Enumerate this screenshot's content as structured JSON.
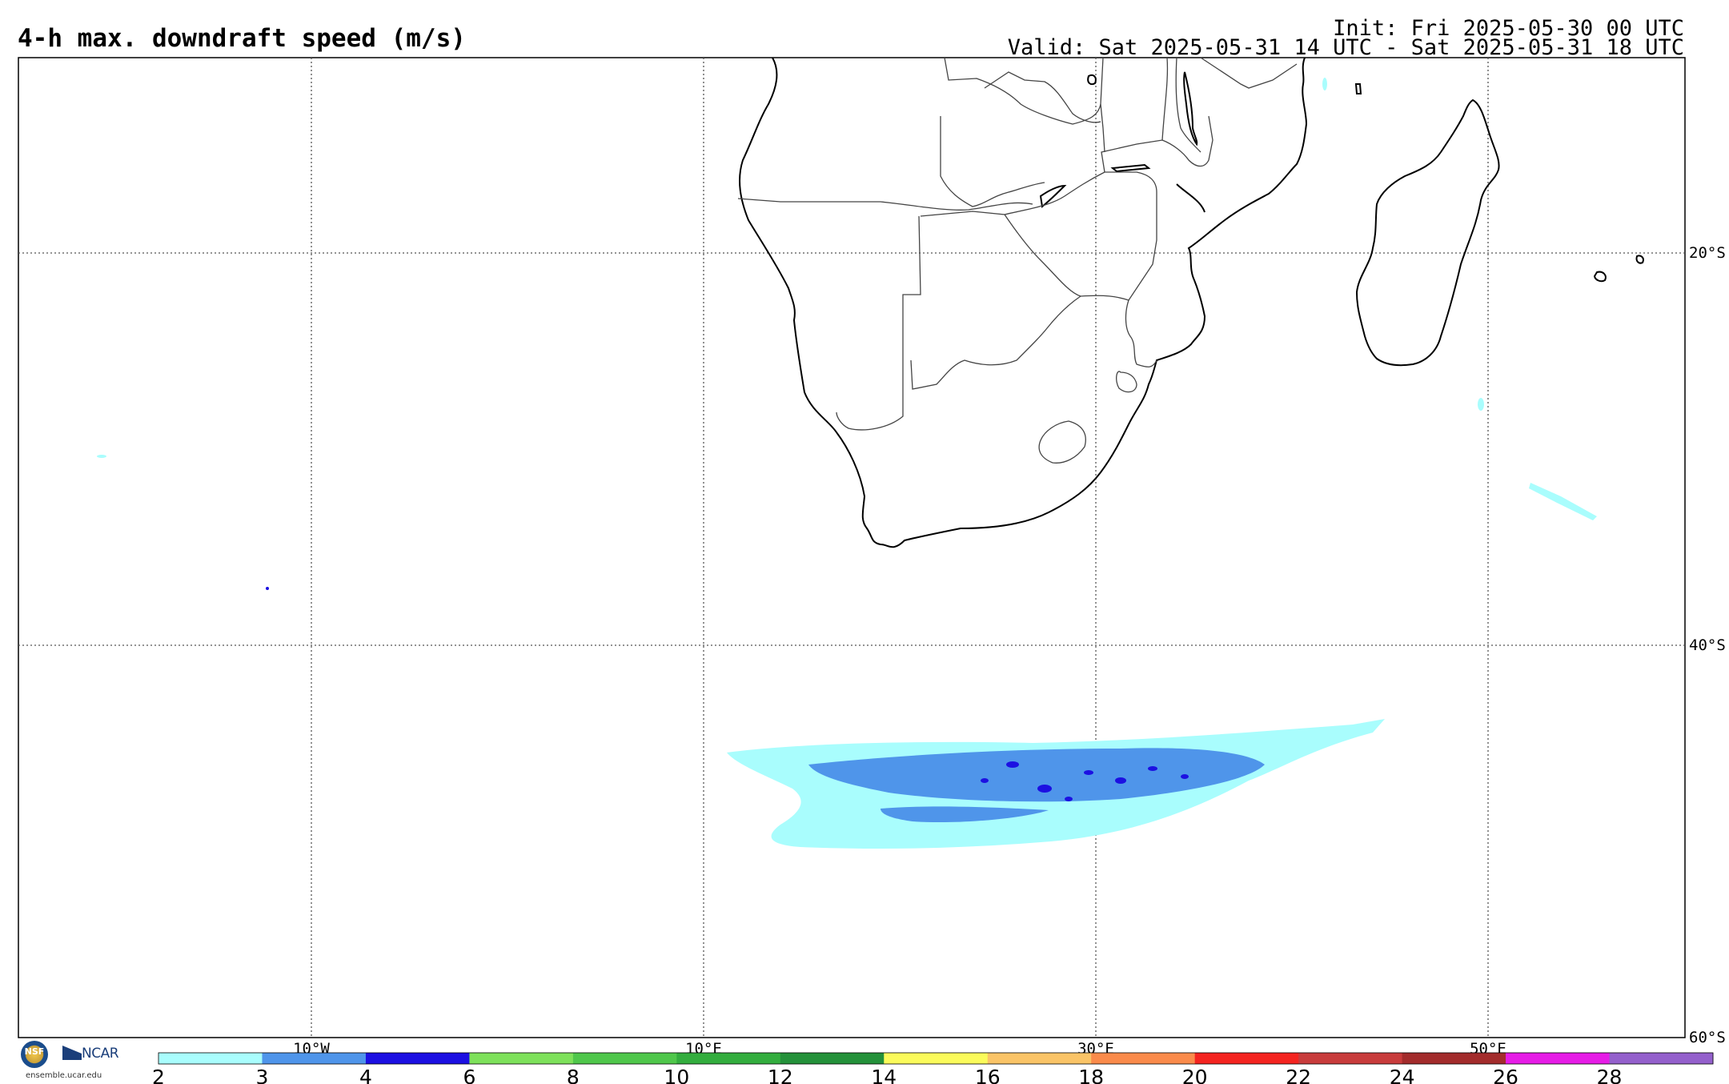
{
  "header": {
    "title": "4-h max. downdraft speed (m/s)",
    "init": "Init: Fri 2025-05-30 00 UTC",
    "valid": "Valid: Sat 2025-05-31 14 UTC - Sat 2025-05-31 18 UTC"
  },
  "map": {
    "lat_labels": [
      "20°S",
      "40°S",
      "60°S"
    ],
    "lon_labels": [
      "10°W",
      "10°E",
      "30°E",
      "50°E"
    ],
    "grid": true
  },
  "colorbar": {
    "ticks": [
      "2",
      "3",
      "4",
      "6",
      "8",
      "10",
      "12",
      "14",
      "16",
      "18",
      "20",
      "22",
      "24",
      "26",
      "28"
    ],
    "colors": [
      "#a9fdfd",
      "#4f95ea",
      "#1c10e2",
      "#7ee15b",
      "#4fc74b",
      "#33ad3e",
      "#24913a",
      "#fbfb5b",
      "#fac467",
      "#fa8b4b",
      "#f42420",
      "#c83c3c",
      "#a32c2c",
      "#e61ce6",
      "#9460cc"
    ]
  },
  "footer": {
    "nsf_logo": "NSF",
    "ncar_logo": "NCAR",
    "site": "ensemble.ucar.edu"
  }
}
